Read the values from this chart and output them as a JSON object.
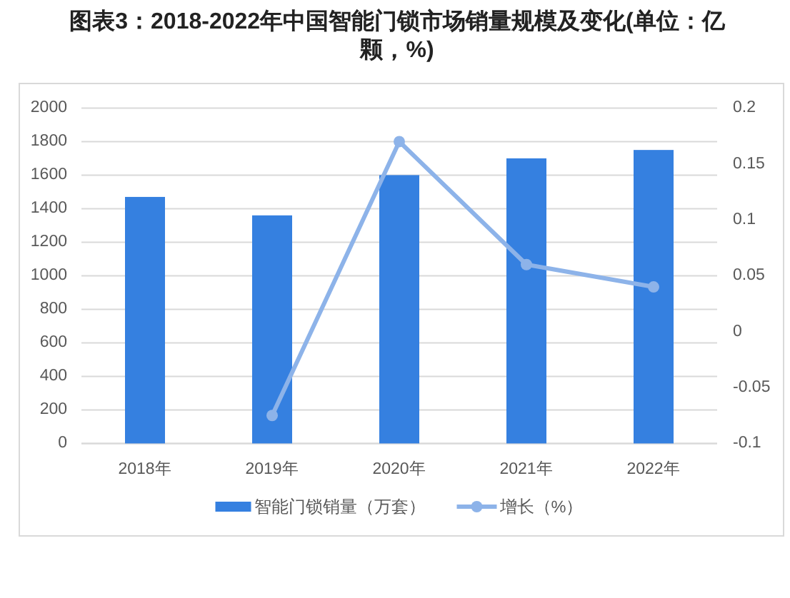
{
  "chart_data": {
    "type": "bar",
    "title": "图表3：2018-2022年中国智能门锁市场销量规模及变化(单位：亿颗，%)",
    "categories": [
      "2018年",
      "2019年",
      "2020年",
      "2021年",
      "2022年"
    ],
    "series": [
      {
        "name": "智能门锁销量（万套）",
        "color": "#3580e0",
        "values": [
          1470,
          1360,
          1600,
          1700,
          1750
        ]
      },
      {
        "name": "增长（%）",
        "type": "line",
        "axis": "y2",
        "color": "#8db3e9",
        "values": [
          null,
          -0.075,
          0.17,
          0.06,
          0.04
        ]
      }
    ],
    "ylim": [
      0,
      2000
    ],
    "yticks": [
      0,
      200,
      400,
      600,
      800,
      1000,
      1200,
      1400,
      1600,
      1800,
      2000
    ],
    "y2lim": [
      -0.1,
      0.2
    ],
    "y2ticks": [
      -0.1,
      -0.05,
      0,
      0.05,
      0.1,
      0.15,
      0.2
    ],
    "grid": "y",
    "legend": "bottom",
    "marker": "circle"
  }
}
